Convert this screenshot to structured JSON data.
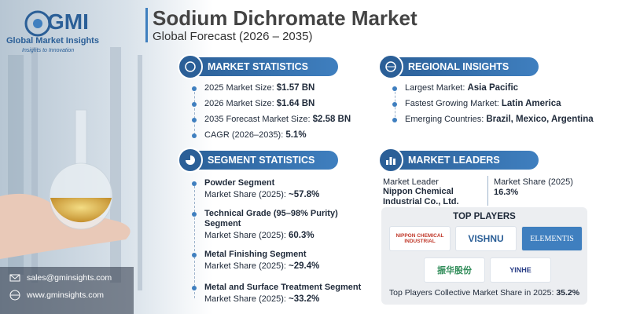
{
  "brand": {
    "logo": "GMI",
    "name": "Global Market Insights",
    "tagline": "Insights to Innovation"
  },
  "header": {
    "title": "Sodium Dichromate Market",
    "subtitle": "Global Forecast (2026 – 2035)"
  },
  "market_statistics": {
    "heading": "MARKET STATISTICS",
    "items": [
      {
        "label": "2025 Market Size:",
        "value": "$1.57 BN"
      },
      {
        "label": "2026 Market Size:",
        "value": "$1.64 BN"
      },
      {
        "label": "2035 Forecast Market Size:",
        "value": "$2.58 BN"
      },
      {
        "label": "CAGR (2026–2035):",
        "value": "5.1%"
      }
    ]
  },
  "regional_insights": {
    "heading": "REGIONAL INSIGHTS",
    "items": [
      {
        "label": "Largest Market:",
        "value": "Asia Pacific"
      },
      {
        "label": "Fastest Growing Market:",
        "value": "Latin America"
      },
      {
        "label": "Emerging Countries:",
        "value": "Brazil, Mexico, Argentina"
      }
    ]
  },
  "segment_statistics": {
    "heading": "SEGMENT STATISTICS",
    "items": [
      {
        "name": "Powder Segment",
        "label": "Market Share (2025):",
        "value": "~57.8%"
      },
      {
        "name": "Technical Grade (95–98% Purity) Segment",
        "label": "Market Share (2025):",
        "value": "60.3%"
      },
      {
        "name": "Metal Finishing Segment",
        "label": "Market Share (2025):",
        "value": "~29.4%"
      },
      {
        "name": "Metal and Surface Treatment Segment",
        "label": "Market Share (2025):",
        "value": "~33.2%"
      }
    ]
  },
  "market_leaders": {
    "heading": "MARKET LEADERS",
    "leader_label": "Market Leader",
    "leader": "Nippon Chemical Industrial Co., Ltd.",
    "share_label": "Market Share (2025)",
    "share": "16.3%"
  },
  "top_players": {
    "heading": "TOP PLAYERS",
    "logos": [
      "NIPPON CHEMICAL INDUSTRIAL",
      "VISHNU",
      "ELEMENTIS",
      "振华股份",
      "YINHE"
    ],
    "collective_label": "Top Players Collective Market Share in 2025:",
    "collective_value": "35.2%"
  },
  "contact": {
    "email": "sales@gminsights.com",
    "website": "www.gminsights.com"
  }
}
